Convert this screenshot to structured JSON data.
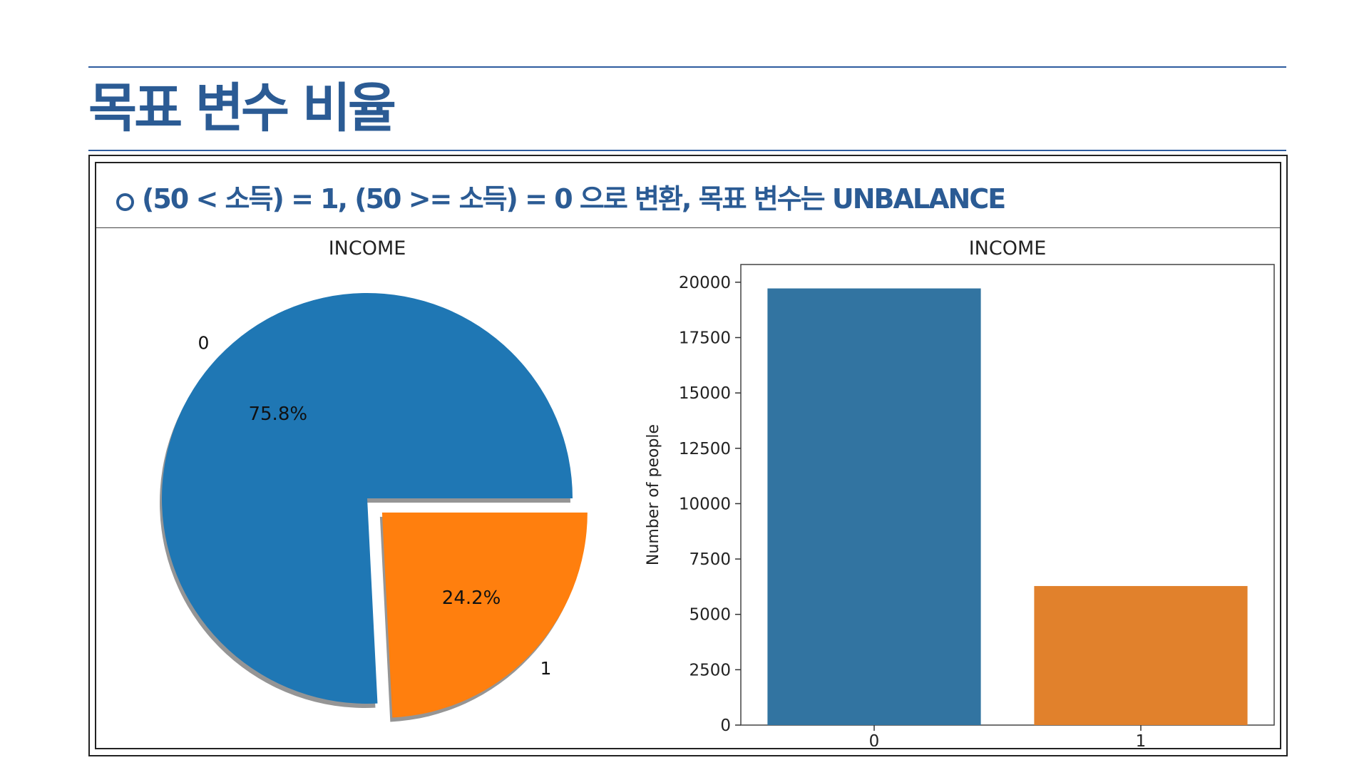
{
  "slide": {
    "title": "목표 변수 비율",
    "bullet": "(50 < 소득) = 1, (50 >= 소득) = 0 으로 변환, 목표 변수는 UNBALANCE"
  },
  "colors": {
    "accent": "#2B5B94",
    "pie_0": "#1F77B4",
    "pie_1": "#FF7F0E",
    "bar_0": "#3274A1",
    "bar_1": "#E1812C"
  },
  "chart_data": [
    {
      "type": "pie",
      "title": "INCOME",
      "labels": [
        "0",
        "1"
      ],
      "values": [
        75.8,
        24.2
      ],
      "value_labels": [
        "75.8%",
        "24.2%"
      ],
      "explode": [
        0,
        0.1
      ],
      "shadow": true,
      "startangle": 0
    },
    {
      "type": "bar",
      "title": "INCOME",
      "categories": [
        "0",
        "1"
      ],
      "values": [
        19720,
        6280
      ],
      "xlabel": "",
      "ylabel": "Number of people",
      "ylim": [
        0,
        20800
      ],
      "yticks": [
        0,
        2500,
        5000,
        7500,
        10000,
        12500,
        15000,
        17500,
        20000
      ],
      "ytick_labels": [
        "0",
        "2500",
        "5000",
        "7500",
        "10000",
        "12500",
        "15000",
        "17500",
        "20000"
      ],
      "grid": false
    }
  ]
}
